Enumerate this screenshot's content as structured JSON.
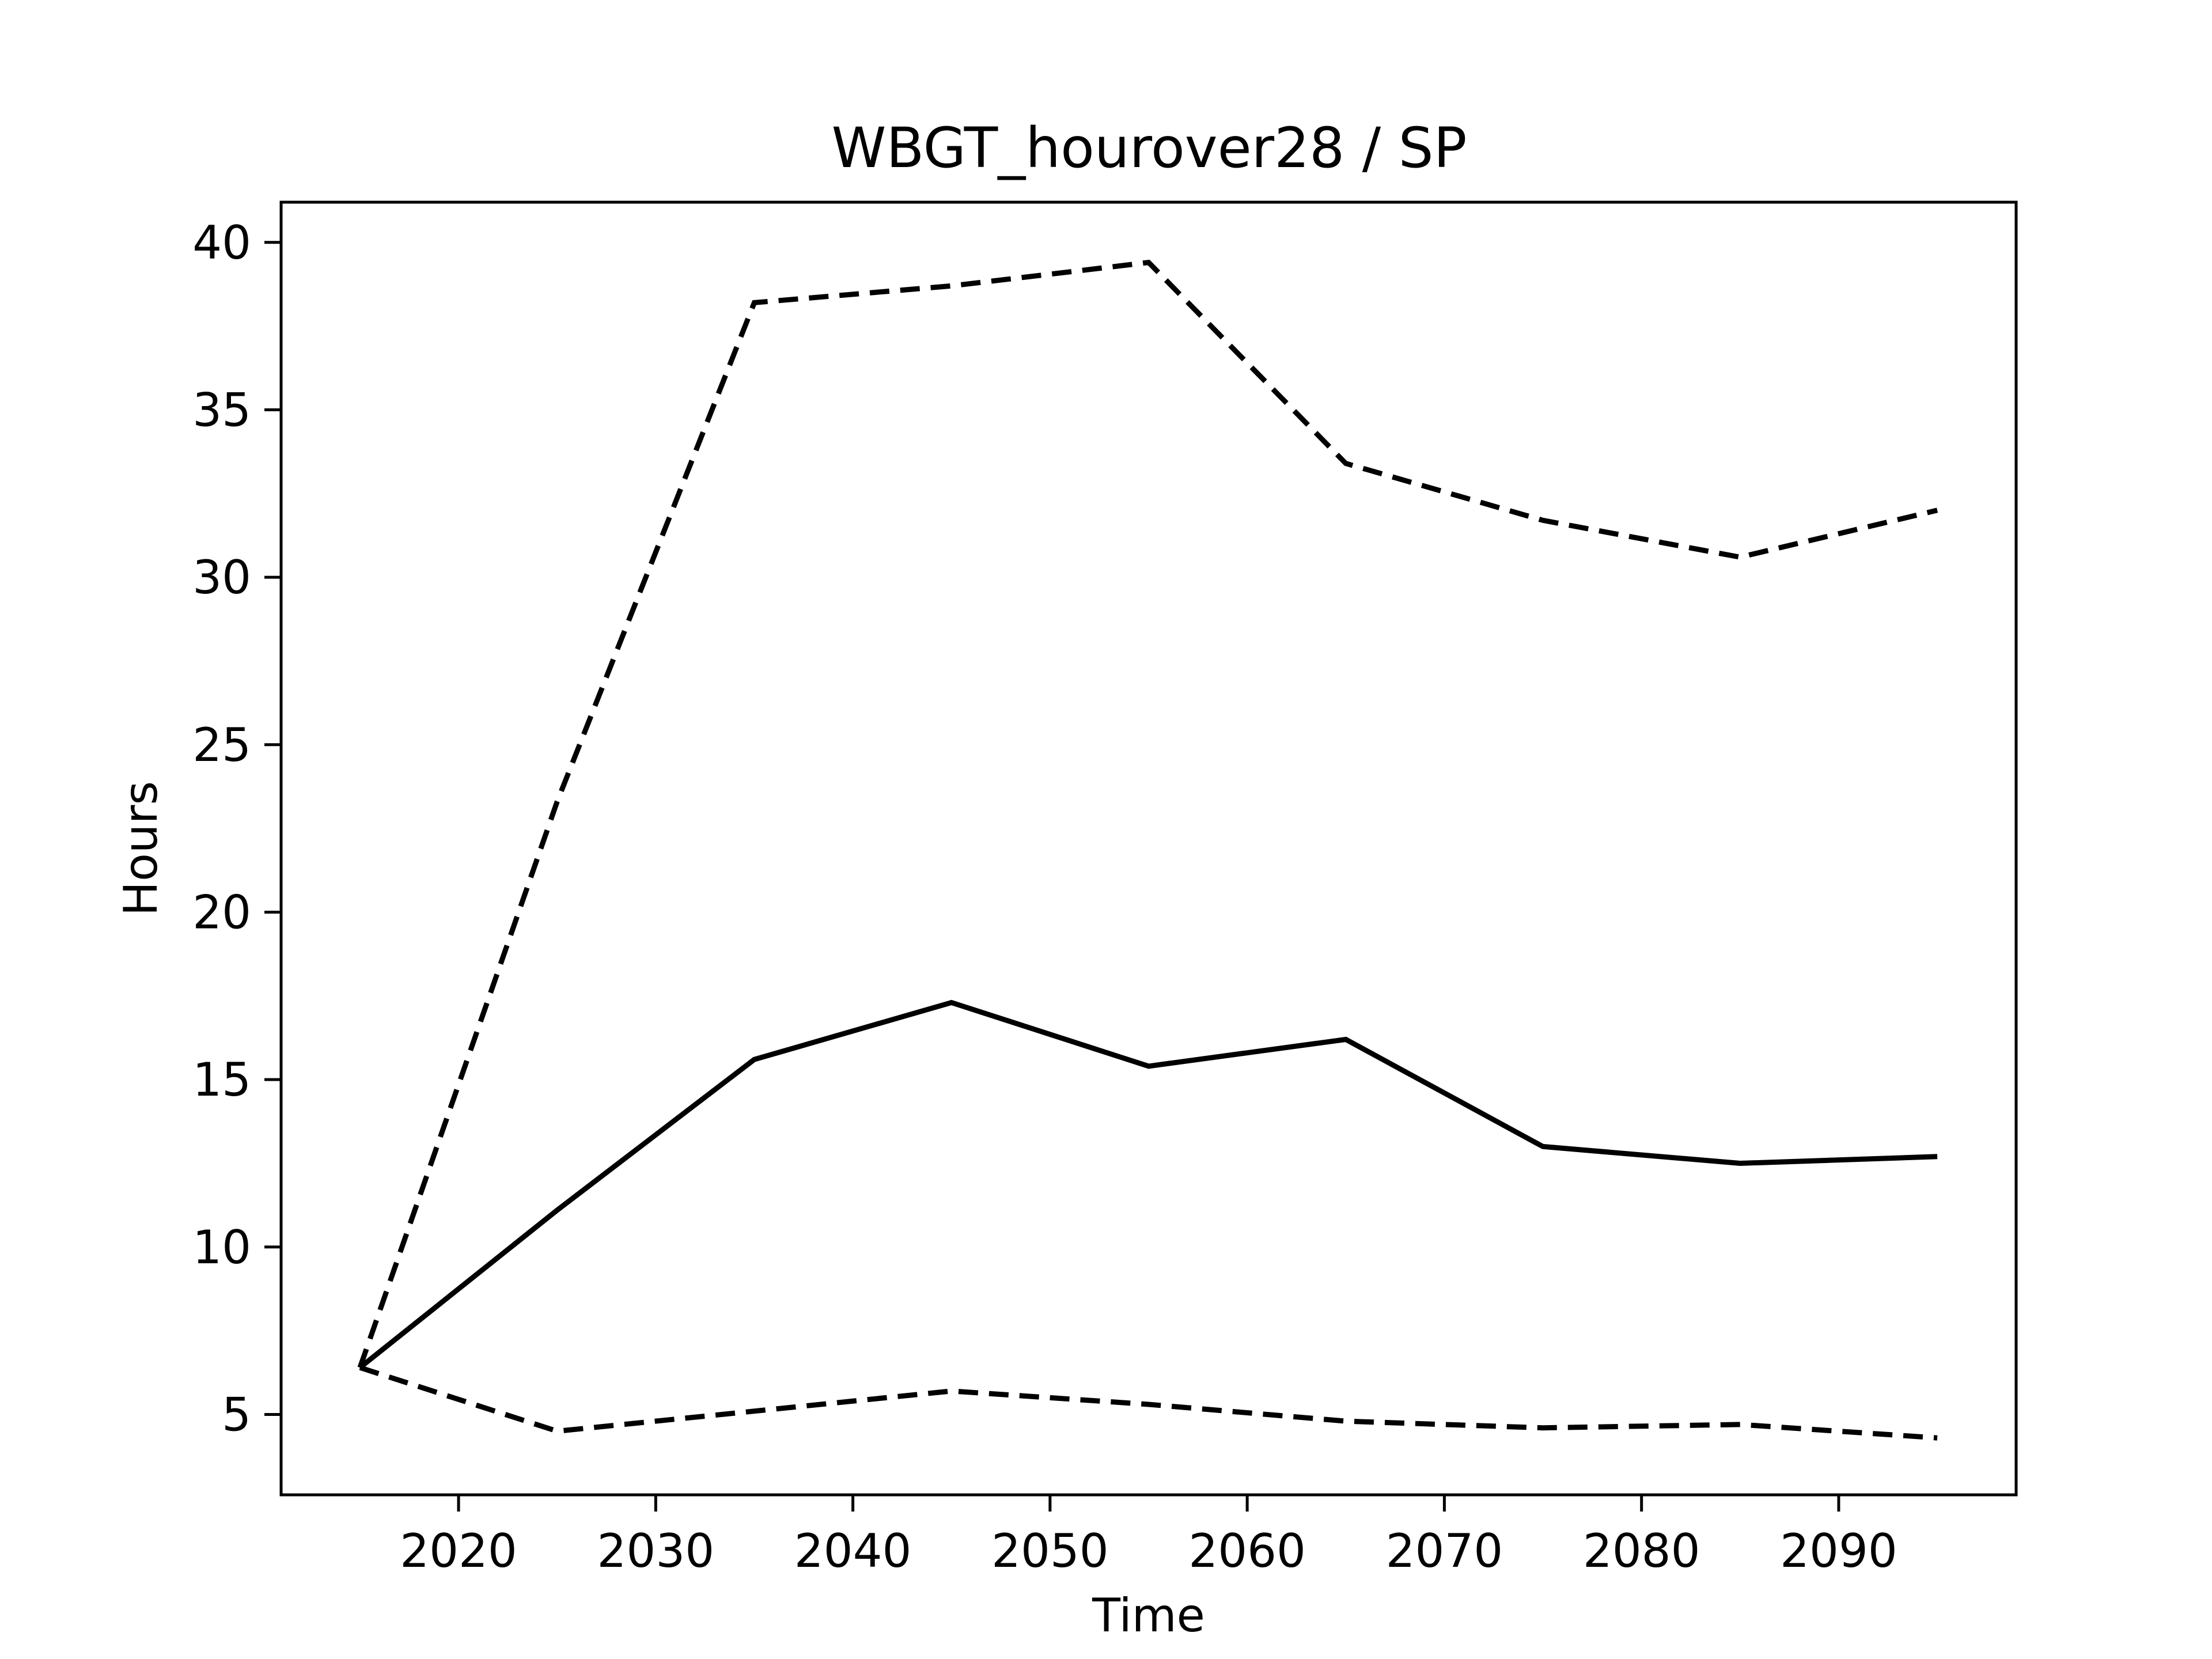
{
  "chart_data": {
    "type": "line",
    "title": "WBGT_hourover28 / SP",
    "xlabel": "Time",
    "ylabel": "Hours",
    "xlim": [
      2011,
      2099
    ],
    "ylim": [
      2.6,
      41.2
    ],
    "xticks": [
      2020,
      2030,
      2040,
      2050,
      2060,
      2070,
      2080,
      2090
    ],
    "yticks": [
      5,
      10,
      15,
      20,
      25,
      30,
      35,
      40
    ],
    "x": [
      2015,
      2025,
      2035,
      2045,
      2055,
      2065,
      2075,
      2085,
      2095
    ],
    "series": [
      {
        "style": "dashed",
        "values": [
          6.4,
          23.3,
          38.2,
          38.7,
          39.4,
          33.4,
          31.7,
          30.6,
          32.0
        ]
      },
      {
        "style": "solid",
        "values": [
          6.4,
          11.1,
          15.6,
          17.3,
          15.4,
          16.2,
          13.0,
          12.5,
          12.7
        ]
      },
      {
        "style": "dashed",
        "values": [
          6.4,
          4.5,
          5.1,
          5.7,
          5.3,
          4.8,
          4.6,
          4.7,
          4.3
        ]
      }
    ],
    "grid": false,
    "legend": "none"
  }
}
